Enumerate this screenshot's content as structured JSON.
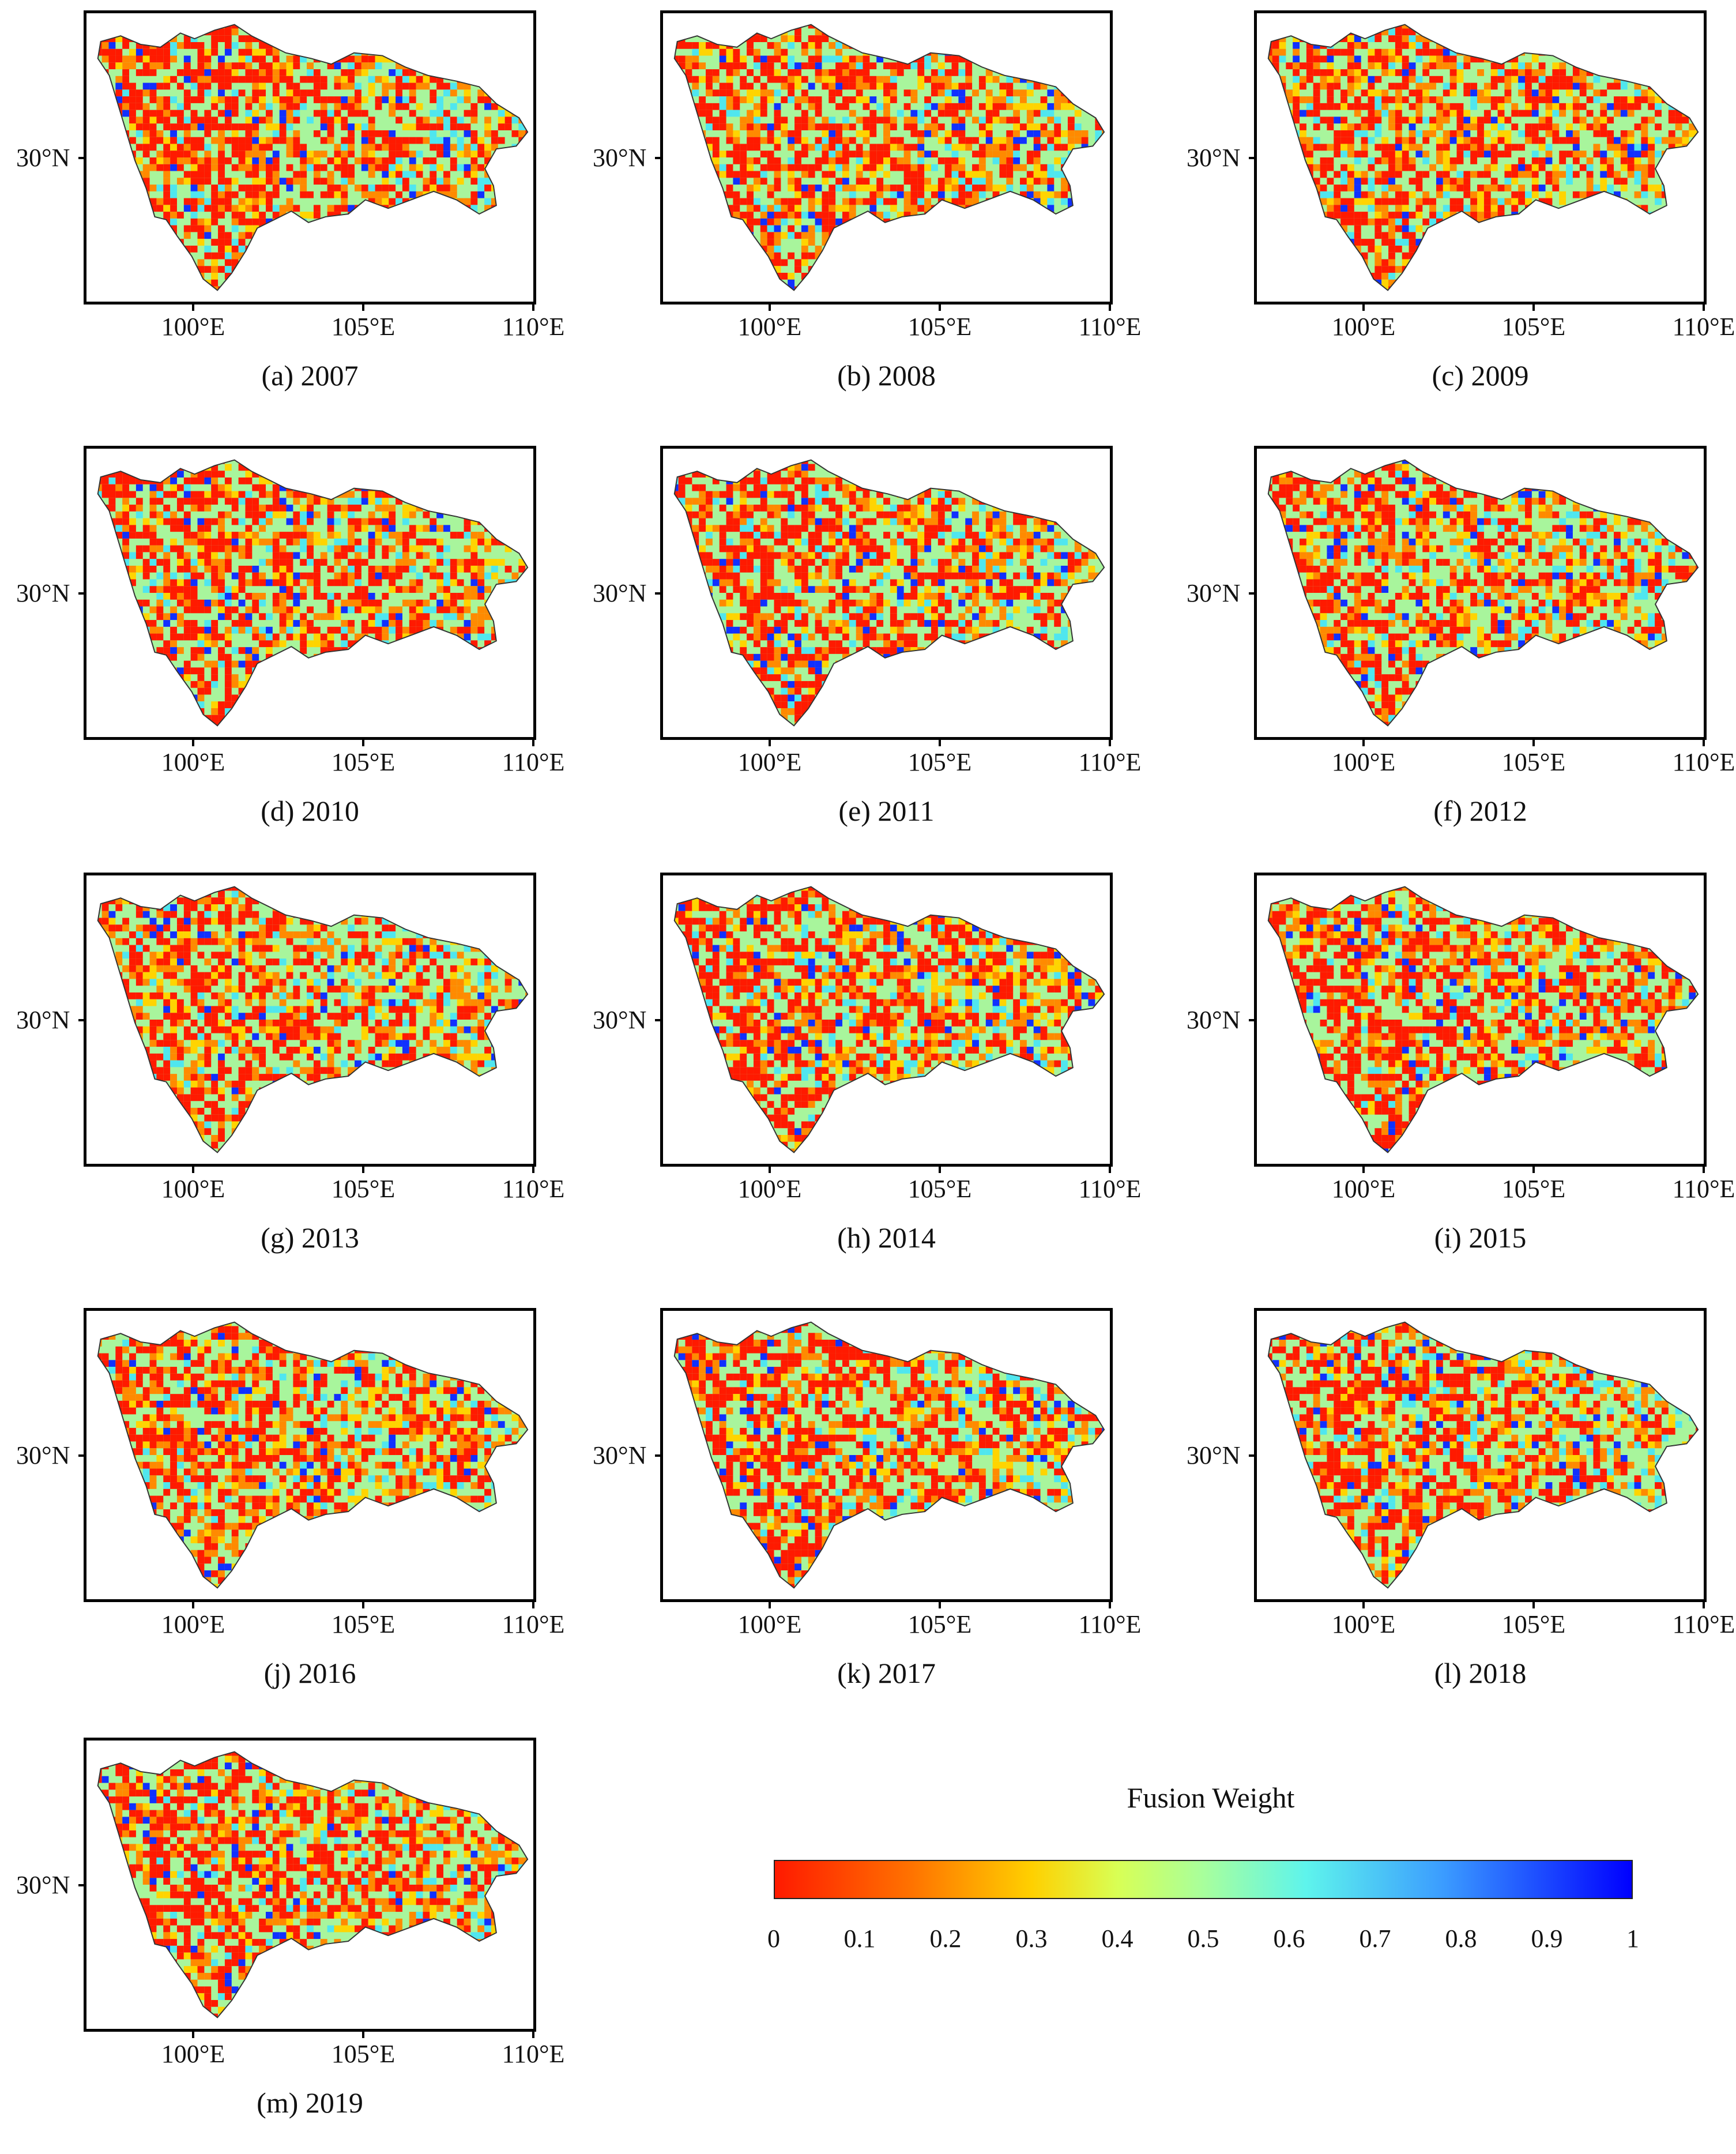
{
  "figure": {
    "axis_labels": {
      "y_tick": "30°N",
      "x_ticks": [
        "100°E",
        "105°E",
        "110°E"
      ]
    },
    "panels": [
      {
        "caption": "(a) 2007",
        "year": 2007,
        "seed": 7
      },
      {
        "caption": "(b) 2008",
        "year": 2008,
        "seed": 8
      },
      {
        "caption": "(c) 2009",
        "year": 2009,
        "seed": 9
      },
      {
        "caption": "(d) 2010",
        "year": 2010,
        "seed": 10
      },
      {
        "caption": "(e) 2011",
        "year": 2011,
        "seed": 11
      },
      {
        "caption": "(f) 2012",
        "year": 2012,
        "seed": 12
      },
      {
        "caption": "(g) 2013",
        "year": 2013,
        "seed": 13
      },
      {
        "caption": "(h) 2014",
        "year": 2014,
        "seed": 14
      },
      {
        "caption": "(i) 2015",
        "year": 2015,
        "seed": 15
      },
      {
        "caption": "(j) 2016",
        "year": 2016,
        "seed": 16
      },
      {
        "caption": "(k) 2017",
        "year": 2017,
        "seed": 17
      },
      {
        "caption": "(l) 2018",
        "year": 2018,
        "seed": 18
      },
      {
        "caption": "(m) 2019",
        "year": 2019,
        "seed": 19
      }
    ],
    "legend": {
      "title": "Fusion Weight",
      "ticks": [
        "0",
        "0.1",
        "0.2",
        "0.3",
        "0.4",
        "0.5",
        "0.6",
        "0.7",
        "0.8",
        "0.9",
        "1"
      ],
      "colors": [
        "#ff1a00",
        "#ff7300",
        "#ffd000",
        "#d8ff55",
        "#a8ff9c",
        "#5ef4ec",
        "#3b9cff",
        "#0000ff"
      ]
    },
    "map_colors": {
      "low": "#ff1a00",
      "mid_low": "#ff8a00",
      "yellow": "#ffd400",
      "green": "#a8f59c",
      "cyan": "#4fe6ef",
      "blue": "#1030ff",
      "outline": "#333333"
    }
  }
}
